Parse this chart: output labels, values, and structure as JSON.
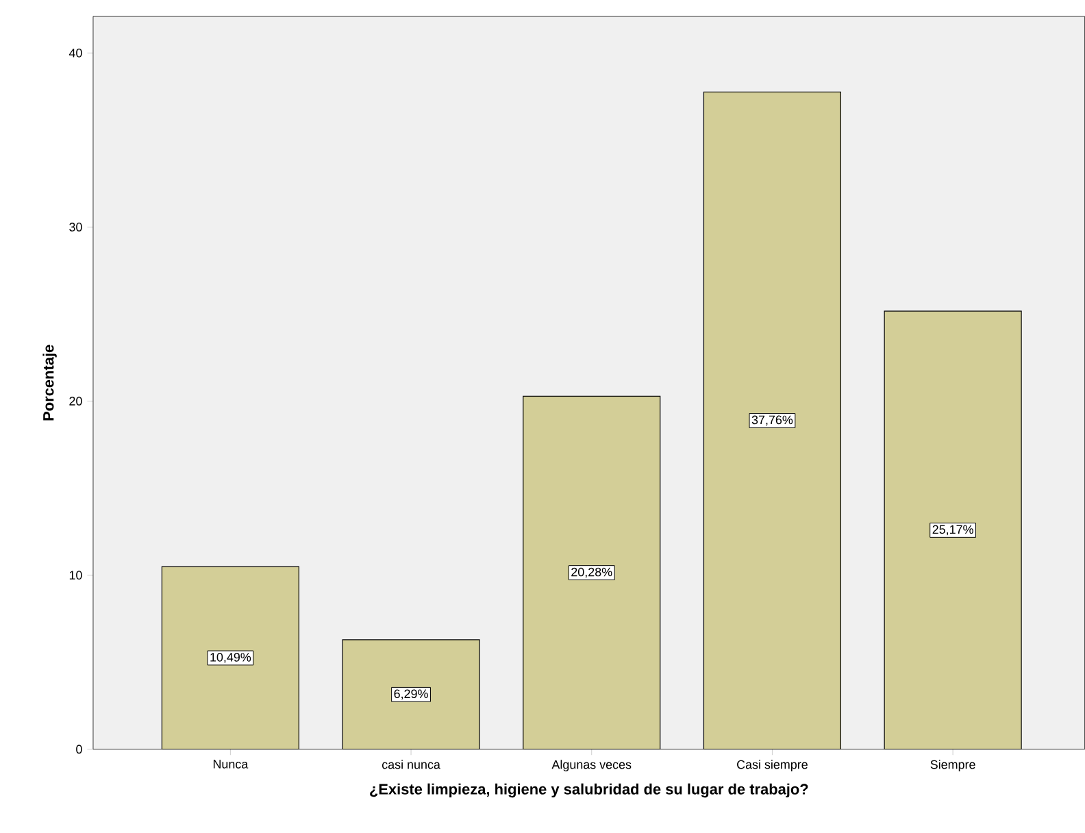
{
  "chart_data": {
    "type": "bar",
    "xlabel": "¿Existe limpieza, higiene y salubridad de su lugar de trabajo?",
    "ylabel": "Porcentaje",
    "categories": [
      "Nunca",
      "casi nunca",
      "Algunas veces",
      "Casi siempre",
      "Siempre"
    ],
    "values": [
      10.49,
      6.29,
      20.28,
      37.76,
      25.17
    ],
    "value_labels": [
      "10,49%",
      "6,29%",
      "20,28%",
      "37,76%",
      "25,17%"
    ],
    "color": "#d3ce97",
    "ylim": [
      0,
      42.1
    ],
    "yticks": [
      0,
      10,
      20,
      30,
      40
    ],
    "grid": false
  }
}
